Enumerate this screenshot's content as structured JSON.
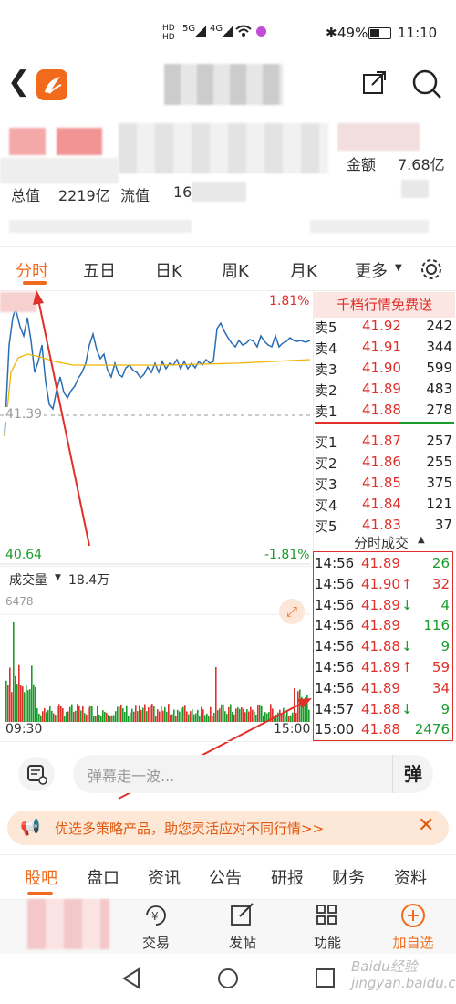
{
  "status": {
    "battery": "49%",
    "time": "11:10",
    "net1": "5G",
    "net2": "4G"
  },
  "header": {
    "back": "<",
    "share": "share",
    "search": "search"
  },
  "quote": {
    "amount_label": "金额",
    "amount_value": "7.68亿",
    "mktcap_label": "总值",
    "mktcap_value": "2219亿",
    "float_label": "流值",
    "float_value": "16"
  },
  "tabs": [
    "分时",
    "五日",
    "日K",
    "周K",
    "月K",
    "更多"
  ],
  "chart": {
    "pct_top": "1.81%",
    "pct_bottom": "-1.81%",
    "mid_price": "41.39",
    "low_price": "40.64",
    "vol_label": "成交量",
    "vol_value": "18.4万",
    "vol_max": "6478",
    "time_start": "09:30",
    "time_end": "15:00"
  },
  "orderbook": {
    "banner": "千档行情免费送",
    "asks": [
      {
        "label": "卖5",
        "price": "41.92",
        "vol": "242"
      },
      {
        "label": "卖4",
        "price": "41.91",
        "vol": "344"
      },
      {
        "label": "卖3",
        "price": "41.90",
        "vol": "599"
      },
      {
        "label": "卖2",
        "price": "41.89",
        "vol": "483"
      },
      {
        "label": "卖1",
        "price": "41.88",
        "vol": "278"
      }
    ],
    "bids": [
      {
        "label": "买1",
        "price": "41.87",
        "vol": "257"
      },
      {
        "label": "买2",
        "price": "41.86",
        "vol": "255"
      },
      {
        "label": "买3",
        "price": "41.85",
        "vol": "375"
      },
      {
        "label": "买4",
        "price": "41.84",
        "vol": "121"
      },
      {
        "label": "买5",
        "price": "41.83",
        "vol": "37"
      }
    ],
    "trades_header": "分时成交",
    "trades": [
      {
        "time": "14:56",
        "price": "41.89",
        "arrow": "",
        "vol": "26",
        "vc": "green"
      },
      {
        "time": "14:56",
        "price": "41.90",
        "arrow": "↑",
        "vol": "32",
        "vc": "red"
      },
      {
        "time": "14:56",
        "price": "41.89",
        "arrow": "↓",
        "vol": "4",
        "vc": "green"
      },
      {
        "time": "14:56",
        "price": "41.89",
        "arrow": "",
        "vol": "116",
        "vc": "green"
      },
      {
        "time": "14:56",
        "price": "41.88",
        "arrow": "↓",
        "vol": "9",
        "vc": "green"
      },
      {
        "time": "14:56",
        "price": "41.89",
        "arrow": "↑",
        "vol": "59",
        "vc": "red"
      },
      {
        "time": "14:56",
        "price": "41.89",
        "arrow": "",
        "vol": "34",
        "vc": "red"
      },
      {
        "time": "14:57",
        "price": "41.88",
        "arrow": "↓",
        "vol": "9",
        "vc": "green"
      },
      {
        "time": "15:00",
        "price": "41.88",
        "arrow": "",
        "vol": "2476",
        "vc": "green"
      }
    ]
  },
  "danmu": {
    "placeholder": "弹幕走一波...",
    "btn": "弹"
  },
  "promo": {
    "text": "优选多策略产品，助您灵活应对不同行情>>"
  },
  "bottom_tabs": [
    "股吧",
    "盘口",
    "资讯",
    "公告",
    "研报",
    "财务",
    "资料"
  ],
  "toolbar": [
    "交易",
    "发帖",
    "功能",
    "加自选"
  ],
  "watermark": "Baidu经验 jingyan.baidu.com",
  "colors": {
    "accent": "#f26b1d",
    "up": "#e0302a",
    "down": "#1a9c2c",
    "line": "#2a6db5",
    "avg": "#f0b400"
  }
}
